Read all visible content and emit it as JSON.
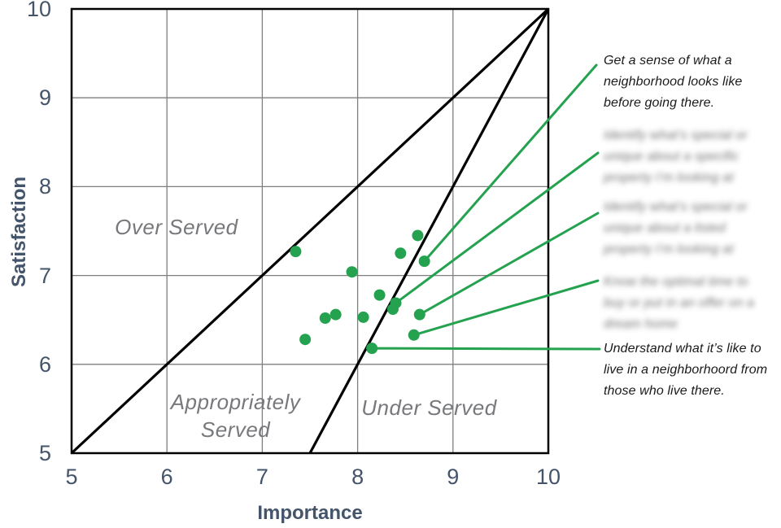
{
  "page": {
    "background": "#ffffff"
  },
  "colors": {
    "accent_green": "#24A24F",
    "axis_text": "#44546A",
    "region_label_gray": "#77787B",
    "annotation_text": "#1A1A1A",
    "gridline_gray": "#7F7F7F",
    "diagonal_black": "#000000"
  },
  "chart_data": {
    "type": "scatter",
    "title": "",
    "xlabel": "Importance",
    "ylabel": "Satisfaction",
    "xlim": [
      5,
      10
    ],
    "ylim": [
      5,
      10
    ],
    "xticks": [
      5,
      6,
      7,
      8,
      9,
      10
    ],
    "yticks": [
      5,
      6,
      7,
      8,
      9,
      10
    ],
    "grid": true,
    "point_color": "#24A24F",
    "point_radius_px": 7,
    "points": [
      [
        7.35,
        7.27
      ],
      [
        7.94,
        7.04
      ],
      [
        8.45,
        7.25
      ],
      [
        8.63,
        7.45
      ],
      [
        8.7,
        7.16
      ],
      [
        8.23,
        6.78
      ],
      [
        8.4,
        6.69
      ],
      [
        8.37,
        6.62
      ],
      [
        7.77,
        6.56
      ],
      [
        7.66,
        6.52
      ],
      [
        8.06,
        6.53
      ],
      [
        8.65,
        6.56
      ],
      [
        7.45,
        6.28
      ],
      [
        8.59,
        6.33
      ],
      [
        8.15,
        6.18
      ]
    ],
    "reference_lines": [
      {
        "name": "parity-diagonal",
        "from": [
          5,
          5
        ],
        "to": [
          10,
          10
        ]
      },
      {
        "name": "steep-diagonal",
        "from": [
          7.5,
          5
        ],
        "to": [
          10,
          10
        ]
      }
    ],
    "regions": [
      {
        "lines": [
          "Over Served"
        ],
        "x": 6.1,
        "y": 7.55
      },
      {
        "lines": [
          "Appropriately",
          "Served"
        ],
        "x": 6.72,
        "y": 5.42
      },
      {
        "lines": [
          "Under Served"
        ],
        "x": 8.75,
        "y": 5.51
      }
    ]
  },
  "annotations": [
    {
      "lines": [
        "Get a sense of what a",
        "neighborhood looks like",
        "before going there."
      ],
      "blurred": false,
      "connects_to_point": 4
    },
    {
      "lines": [
        "Identify what’s special or",
        "unique about a specific",
        "property I’m looking at"
      ],
      "blurred": true,
      "connects_to_point": 6
    },
    {
      "lines": [
        "Identify what’s special or",
        "unique about a listed",
        "property I’m looking at"
      ],
      "blurred": true,
      "connects_to_point": 11
    },
    {
      "lines": [
        "Know the optimal time to",
        "buy or put in an offer on a",
        "dream home"
      ],
      "blurred": true,
      "connects_to_point": 13
    },
    {
      "lines": [
        "Understand what it’s like to",
        "live in a neighborhoord from",
        "those who live there."
      ],
      "blurred": false,
      "connects_to_point": 14
    }
  ]
}
